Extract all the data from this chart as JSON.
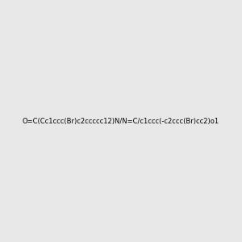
{
  "background_color": "#e8e8e8",
  "title": "",
  "smiles": "O=C(Cc1ccc(Br)c2ccccc12)N/N=C/c1ccc(-c2ccc(Br)cc2)o1",
  "figsize": [
    3.0,
    3.0
  ],
  "dpi": 100
}
